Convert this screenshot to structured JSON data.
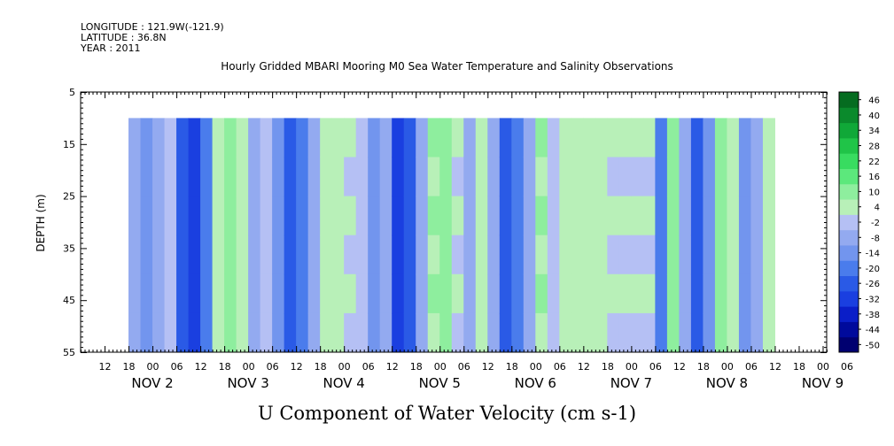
{
  "header": {
    "longitude": "LONGITUDE : 121.9W(-121.9)",
    "latitude": "LATITUDE : 36.8N",
    "year": "YEAR : 2011"
  },
  "chart_data": {
    "type": "heatmap",
    "title": "Hourly Gridded MBARI Mooring M0 Sea Water Temperature and Salinity Observations",
    "xlabel": "U Component of Water Velocity (cm s-1)",
    "ylabel": "DEPTH (m)",
    "ylim": [
      55,
      5
    ],
    "y_ticks": [
      5,
      15,
      25,
      35,
      45,
      55
    ],
    "x_hour_ticks": [
      "12",
      "18",
      "00",
      "06",
      "12",
      "18",
      "00",
      "06",
      "12",
      "18",
      "00",
      "06",
      "12",
      "18",
      "00",
      "06",
      "12",
      "18",
      "00",
      "06",
      "12",
      "18",
      "00",
      "06",
      "12",
      "18",
      "00",
      "06",
      "12",
      "18",
      "00",
      "06"
    ],
    "x_day_labels": [
      "NOV 2",
      "NOV 3",
      "NOV 4",
      "NOV 5",
      "NOV 6",
      "NOV 7",
      "NOV 8",
      "NOV 9"
    ],
    "colorbar": {
      "levels": [
        -50,
        -44,
        -38,
        -32,
        -26,
        -20,
        -14,
        -8,
        -2,
        4,
        10,
        16,
        22,
        28,
        34,
        40,
        46
      ],
      "labels": [
        "46",
        "40",
        "34",
        "28",
        "22",
        "16",
        "10",
        "4",
        "-2",
        "-8",
        "-14",
        "-20",
        "-26",
        "-32",
        "-38",
        "-44",
        "-50"
      ],
      "colors": [
        "#000070",
        "#000a9c",
        "#0a1ec8",
        "#1a3fe0",
        "#2a5ae6",
        "#4a7cec",
        "#7295ee",
        "#93aaf0",
        "#b5c0f4",
        "#b8f0b8",
        "#8eee9e",
        "#5ce87c",
        "#38dc60",
        "#20c448",
        "#10a838",
        "#0a8a2c",
        "#056c20"
      ]
    },
    "data_x_range_hours": [
      18,
      180
    ],
    "data_depth_range": [
      10,
      55
    ],
    "gap_note": "",
    "columns": [
      {
        "h": 18,
        "v": -5
      },
      {
        "h": 21,
        "v": -12
      },
      {
        "h": 24,
        "v": -6
      },
      {
        "h": 27,
        "v": 2
      },
      {
        "h": 30,
        "v": -25
      },
      {
        "h": 33,
        "v": -32
      },
      {
        "h": 36,
        "v": -18
      },
      {
        "h": 39,
        "v": 8
      },
      {
        "h": 42,
        "v": 12
      },
      {
        "h": 45,
        "v": 6
      },
      {
        "h": 48,
        "v": -4
      },
      {
        "h": 51,
        "v": -2
      },
      {
        "h": 54,
        "v": -12
      },
      {
        "h": 57,
        "v": -26
      },
      {
        "h": 60,
        "v": -20
      },
      {
        "h": 63,
        "v": -8
      },
      {
        "h": 66,
        "v": 6
      },
      {
        "h": 69,
        "v": 9
      },
      {
        "h": 72,
        "v": 4
      },
      {
        "h": 75,
        "v": -2
      },
      {
        "h": 78,
        "v": -10
      },
      {
        "h": 81,
        "v": -6
      },
      {
        "h": 84,
        "v": -30
      },
      {
        "h": 87,
        "v": -22
      },
      {
        "h": 90,
        "v": -8
      },
      {
        "h": 93,
        "v": 10
      },
      {
        "h": 96,
        "v": 14
      },
      {
        "h": 99,
        "v": 5
      },
      {
        "h": 102,
        "v": -4
      },
      {
        "h": 105,
        "v": 6
      },
      {
        "h": 108,
        "v": -8
      },
      {
        "h": 111,
        "v": -26
      },
      {
        "h": 114,
        "v": -16
      },
      {
        "h": 117,
        "v": -6
      },
      {
        "h": 120,
        "v": 10
      },
      {
        "h": 123,
        "v": -2
      },
      {
        "h": 126,
        "v": 6
      },
      {
        "h": 129,
        "v": 6
      },
      {
        "h": 132,
        "v": 7
      },
      {
        "h": 135,
        "v": 6
      },
      {
        "h": 138,
        "v": 5
      },
      {
        "h": 141,
        "v": 5
      },
      {
        "h": 144,
        "v": 4
      },
      {
        "h": 147,
        "v": 4
      },
      {
        "h": 150,
        "v": -16
      },
      {
        "h": 153,
        "v": 12
      },
      {
        "h": 156,
        "v": -6
      },
      {
        "h": 159,
        "v": -22
      },
      {
        "h": 162,
        "v": -10
      },
      {
        "h": 165,
        "v": 14
      },
      {
        "h": 168,
        "v": 8
      },
      {
        "h": 171,
        "v": -12
      },
      {
        "h": 174,
        "v": -4
      },
      {
        "h": 177,
        "v": 8
      }
    ]
  }
}
